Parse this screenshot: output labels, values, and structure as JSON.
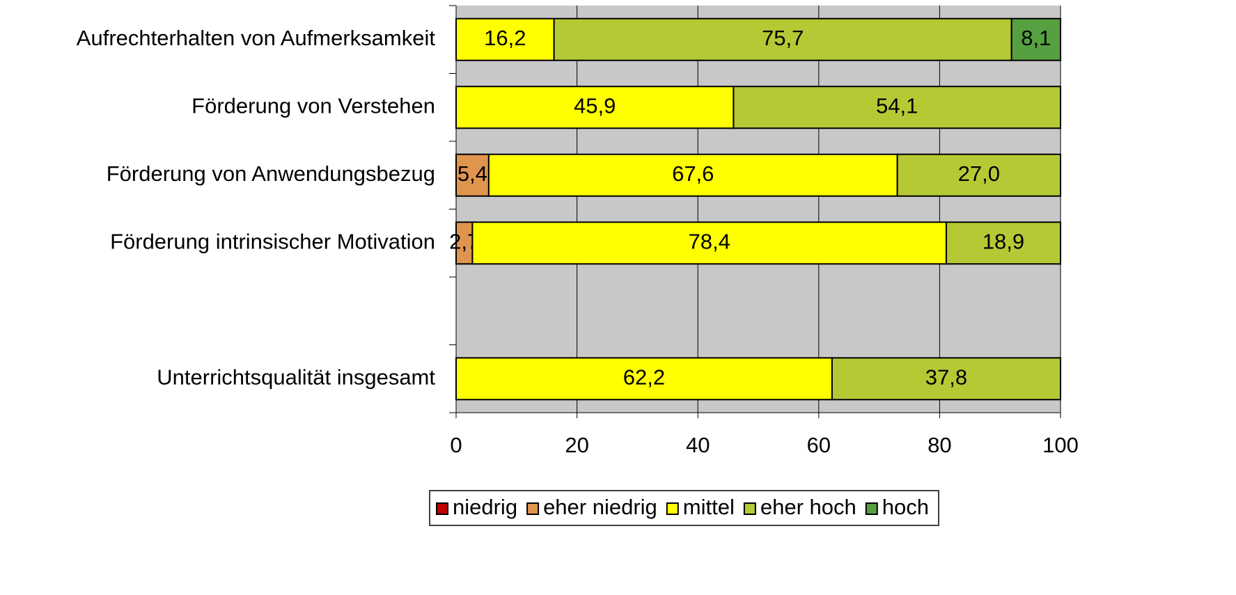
{
  "chart_data": {
    "type": "stacked-bar-horizontal",
    "categories": [
      "Aufrechterhalten von Aufmerksamkeit",
      "Förderung von Verstehen",
      "Förderung von Anwendungsbezug",
      "Förderung intrinsischer Motivation",
      null,
      "Unterrichtsqualität insgesamt"
    ],
    "series": [
      {
        "name": "niedrig",
        "color": "#c00000",
        "values": [
          null,
          null,
          null,
          null,
          null,
          null
        ]
      },
      {
        "name": "eher niedrig",
        "color": "#e0954f",
        "values": [
          null,
          null,
          5.4,
          2.7,
          null,
          null
        ],
        "value_labels": [
          null,
          null,
          "5,4",
          "2,7",
          null,
          null
        ]
      },
      {
        "name": "mittel",
        "color": "#ffff00",
        "values": [
          16.2,
          45.9,
          67.6,
          78.4,
          null,
          62.2
        ],
        "value_labels": [
          "16,2",
          "45,9",
          "67,6",
          "78,4",
          null,
          "62,2"
        ]
      },
      {
        "name": "eher hoch",
        "color": "#b5c935",
        "values": [
          75.7,
          54.1,
          27.0,
          18.9,
          null,
          37.8
        ],
        "value_labels": [
          "75,7",
          "54,1",
          "27,0",
          "18,9",
          null,
          "37,8"
        ]
      },
      {
        "name": "hoch",
        "color": "#56a042",
        "values": [
          8.1,
          null,
          null,
          null,
          null,
          null
        ],
        "value_labels": [
          "8,1",
          null,
          null,
          null,
          null,
          null
        ]
      }
    ],
    "xlim": [
      0,
      100
    ],
    "xticks": [
      0,
      20,
      40,
      60,
      80,
      100
    ],
    "grid": true,
    "legend": "bottom"
  }
}
